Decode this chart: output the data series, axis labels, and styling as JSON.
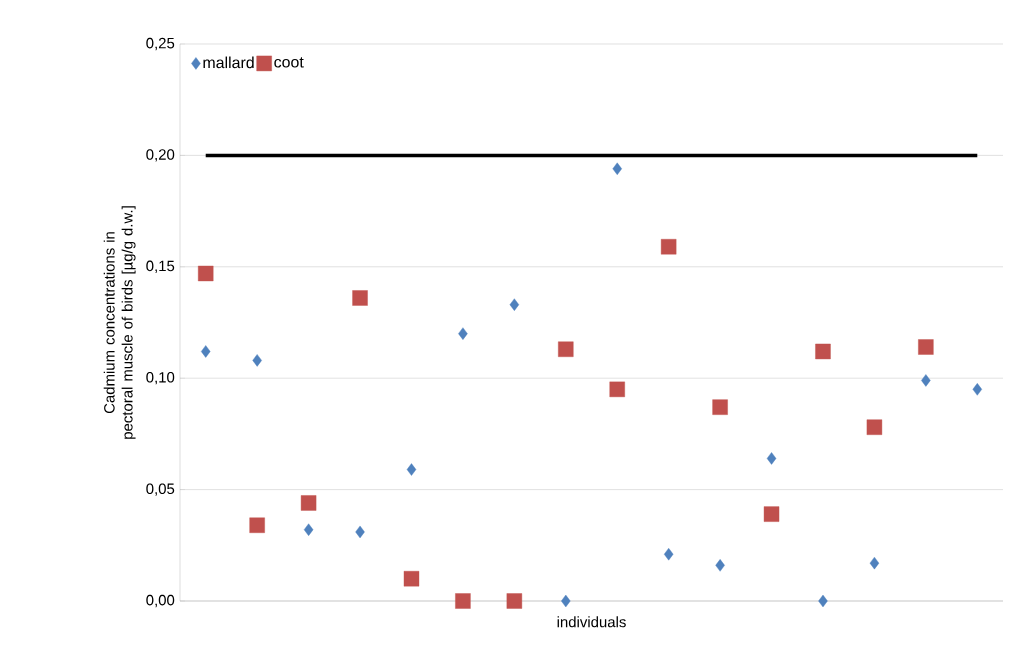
{
  "chart_data": {
    "type": "scatter",
    "xlabel": "individuals",
    "ylabel": "Cadmium concentrations in pectoral muscle of birds [µg/g d.w.]",
    "categories": [
      null,
      null,
      null,
      null,
      null,
      null,
      null,
      null,
      null,
      null,
      null,
      null,
      null,
      null,
      null,
      null
    ],
    "ylim": [
      0,
      0.25
    ],
    "yticks": [
      {
        "value": 0,
        "label": "0,00"
      },
      {
        "value": 0.05,
        "label": "0,05"
      },
      {
        "value": 0.1,
        "label": "0,10"
      },
      {
        "value": 0.15,
        "label": "0,15"
      },
      {
        "value": 0.2,
        "label": "0,20"
      },
      {
        "value": 0.25,
        "label": "0,25"
      }
    ],
    "grid": "y",
    "legend": "top left",
    "series": [
      {
        "name": "mallard",
        "color": "#4f81bd",
        "marker": "diamond",
        "values": [
          0.112,
          0.108,
          0.032,
          0.031,
          0.059,
          0.12,
          0.133,
          0.0,
          0.194,
          0.021,
          0.016,
          0.064,
          0.0,
          0.017,
          0.099,
          0.095
        ]
      },
      {
        "name": "coot",
        "color": "#c0504d",
        "marker": "square",
        "values": [
          0.147,
          0.034,
          0.044,
          0.136,
          0.01,
          0.0,
          0.0,
          0.113,
          0.095,
          0.159,
          0.087,
          0.039,
          0.112,
          0.078,
          0.114,
          null
        ]
      },
      {
        "type": "line",
        "color": "#000000",
        "marker": "none",
        "values": [
          0.2,
          0.2,
          0.2,
          0.2,
          0.2,
          0.2,
          0.2,
          0.2,
          0.2,
          0.2,
          0.2,
          0.2,
          0.2,
          0.2,
          0.2,
          0.2
        ]
      }
    ]
  }
}
